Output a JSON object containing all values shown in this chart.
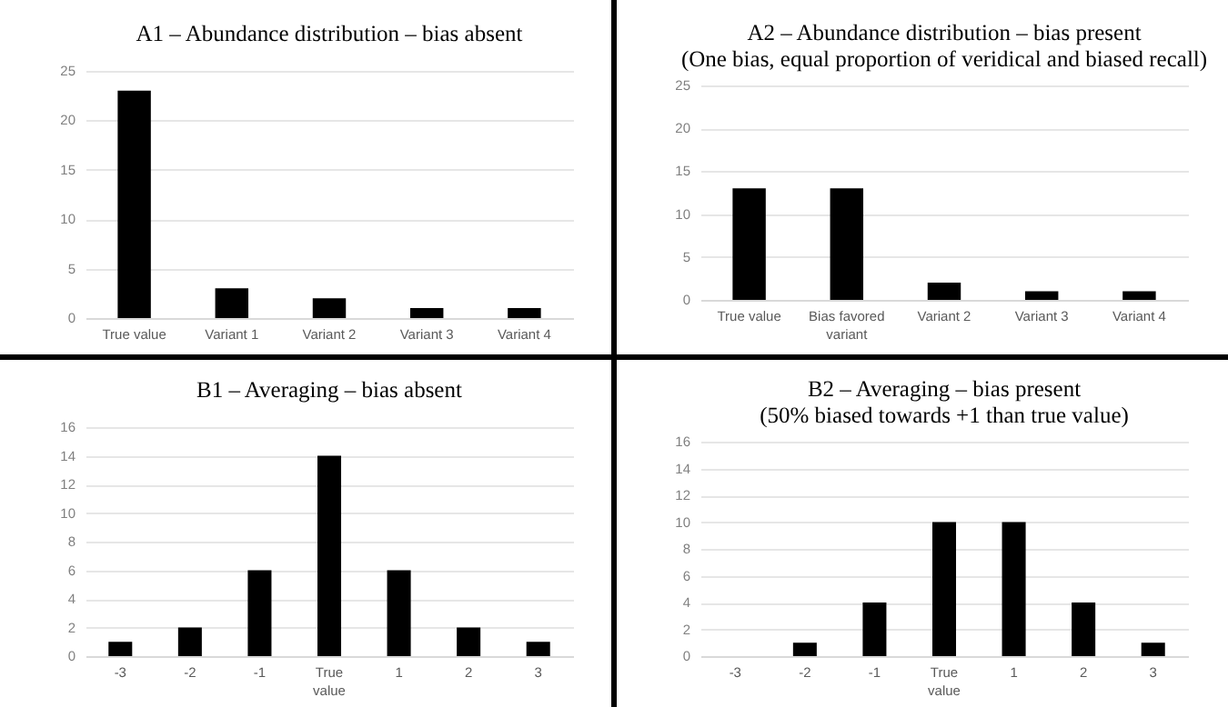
{
  "chart_data": [
    {
      "type": "bar",
      "title": "A1 – Abundance distribution – bias absent",
      "categories": [
        "True value",
        "Variant 1",
        "Variant 2",
        "Variant 3",
        "Variant 4"
      ],
      "values": [
        23,
        3,
        2,
        1,
        1
      ],
      "color": "#000000",
      "ylim": [
        0,
        25
      ],
      "yticks": [
        0,
        5,
        10,
        15,
        20,
        25
      ],
      "grid": "y"
    },
    {
      "type": "bar",
      "title": "A2 – Abundance distribution – bias present",
      "subtitle": "(One bias, equal proportion of veridical and biased recall)",
      "categories": [
        "True value",
        "Bias favored variant",
        "Variant 2",
        "Variant 3",
        "Variant 4"
      ],
      "values": [
        13,
        13,
        2,
        1,
        1
      ],
      "color": "#000000",
      "ylim": [
        0,
        25
      ],
      "yticks": [
        0,
        5,
        10,
        15,
        20,
        25
      ],
      "grid": "y"
    },
    {
      "type": "bar",
      "title": "B1 – Averaging – bias absent",
      "categories": [
        "-3",
        "-2",
        "-1",
        "True value",
        "1",
        "2",
        "3"
      ],
      "values": [
        1,
        2,
        6,
        14,
        6,
        2,
        1
      ],
      "color": "#000000",
      "ylim": [
        0,
        16
      ],
      "yticks": [
        0,
        2,
        4,
        6,
        8,
        10,
        12,
        14,
        16
      ],
      "grid": "y"
    },
    {
      "type": "bar",
      "title": "B2 – Averaging – bias present",
      "subtitle": "(50% biased towards +1 than true value)",
      "categories": [
        "-3",
        "-2",
        "-1",
        "True value",
        "1",
        "2",
        "3"
      ],
      "values": [
        0,
        1,
        4,
        10,
        10,
        4,
        1
      ],
      "color": "#000000",
      "ylim": [
        0,
        16
      ],
      "yticks": [
        0,
        2,
        4,
        6,
        8,
        10,
        12,
        14,
        16
      ],
      "grid": "y"
    }
  ]
}
